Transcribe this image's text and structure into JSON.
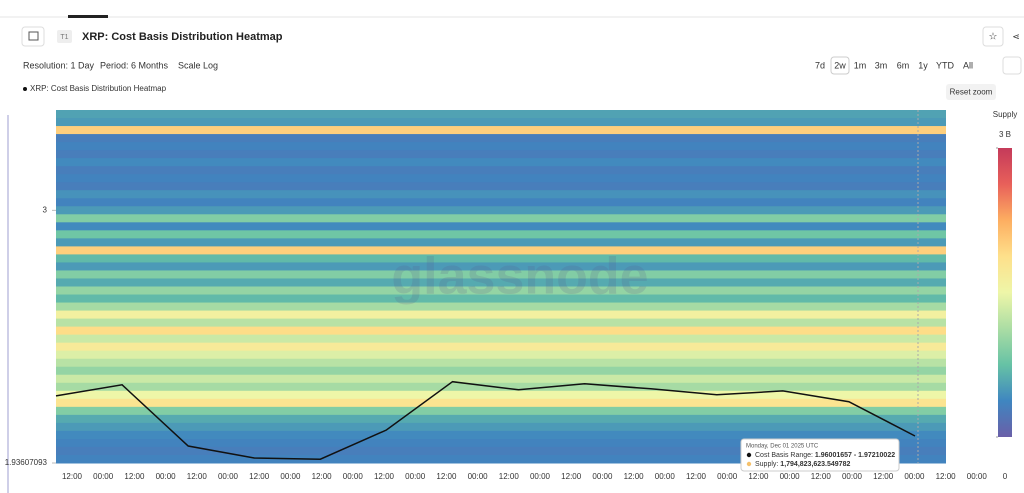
{
  "header": {
    "badge": "T1",
    "title": "XRP: Cost Basis Distribution Heatmap"
  },
  "toolbar": {
    "resolution": "Resolution: 1 Day",
    "period": "Period: 6 Months",
    "scale": "Scale Log",
    "ranges": [
      "7d",
      "2w",
      "1m",
      "3m",
      "6m",
      "1y",
      "YTD",
      "All"
    ],
    "reset": "Reset zoom"
  },
  "watermark": "glassnode",
  "tooltip": {
    "date": "Monday, Dec 01 2025 UTC",
    "range_label": "Cost Basis Range: ",
    "range_value": "1.96001657 - 1.97210022",
    "supply_label": "Supply: ",
    "supply_value": "1,794,823,623.549782"
  },
  "chart_data": {
    "type": "heatmap",
    "legend": "XRP: Cost Basis Distribution Heatmap",
    "log_scale": true,
    "categories": [
      "12:00",
      "00:00",
      "12:00",
      "00:00",
      "12:00",
      "00:00",
      "12:00",
      "00:00",
      "12:00",
      "00:00",
      "12:00",
      "00:00",
      "12:00",
      "00:00",
      "12:00",
      "00:00",
      "12:00",
      "00:00",
      "12:00",
      "00:00",
      "12:00",
      "00:00",
      "12:00",
      "00:00",
      "12:00",
      "00:00",
      "12:00",
      "00:00",
      "12:00",
      "00:00"
    ],
    "ylim": [
      1.93607093,
      3.57
    ],
    "yticks": [
      {
        "value": 1.93607093,
        "label": "1.93607093"
      },
      3
    ],
    "line": {
      "color": "#111111",
      "values": [
        2.175,
        2.217,
        1.994,
        1.953,
        1.949,
        2.05,
        2.229,
        2.198,
        2.221,
        2.202,
        2.179,
        2.194,
        2.153,
        2.029
      ]
    },
    "heatmap": {
      "values": [
        550000000,
        500000000,
        2000000000,
        300000000,
        350000000,
        300000000,
        400000000,
        300000000,
        350000000,
        300000000,
        450000000,
        350000000,
        500000000,
        900000000,
        400000000,
        800000000,
        500000000,
        2000000000,
        700000000,
        500000000,
        900000000,
        600000000,
        1000000000,
        700000000,
        1100000000,
        1600000000,
        1200000000,
        1900000000,
        1300000000,
        1700000000,
        1400000000,
        1200000000,
        1000000000,
        1300000000,
        1100000000,
        1500000000,
        1800000000,
        900000000,
        600000000,
        500000000,
        400000000,
        350000000,
        300000000,
        350000000
      ]
    },
    "colorbar": {
      "title": "Supply",
      "lim": [
        0,
        3000000000
      ],
      "ticks": [
        0,
        {
          "value": 3000000000,
          "label": "3 B"
        }
      ],
      "colors": [
        "#6a5fa8",
        "#3f86c0",
        "#66c2a5",
        "#abdda4",
        "#eef6a8",
        "#fee08b",
        "#fdae61",
        "#e8605a",
        "#c43a5a"
      ]
    }
  }
}
